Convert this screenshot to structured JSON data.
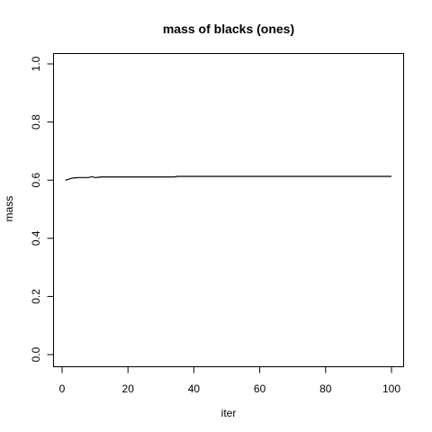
{
  "chart_data": {
    "type": "line",
    "title": "mass of blacks (ones)",
    "xlabel": "iter",
    "ylabel": "mass",
    "xlim": [
      0,
      100
    ],
    "ylim": [
      0,
      1
    ],
    "xticks": [
      "0",
      "20",
      "40",
      "60",
      "80",
      "100"
    ],
    "yticks": [
      "0.0",
      "0.2",
      "0.4",
      "0.6",
      "0.8",
      "1.0"
    ],
    "grid": false,
    "legend": "none",
    "line_color": "#000000",
    "series": [
      {
        "x": [
          1,
          2,
          3,
          4,
          5,
          6,
          7,
          8,
          9,
          10,
          11,
          12,
          15,
          20,
          25,
          30,
          34,
          35,
          40,
          50,
          60,
          70,
          80,
          90,
          100
        ],
        "y": [
          0.6,
          0.603,
          0.607,
          0.608,
          0.609,
          0.609,
          0.609,
          0.609,
          0.612,
          0.609,
          0.61,
          0.611,
          0.611,
          0.611,
          0.611,
          0.611,
          0.611,
          0.613,
          0.613,
          0.613,
          0.613,
          0.613,
          0.613,
          0.613,
          0.613
        ]
      }
    ]
  }
}
